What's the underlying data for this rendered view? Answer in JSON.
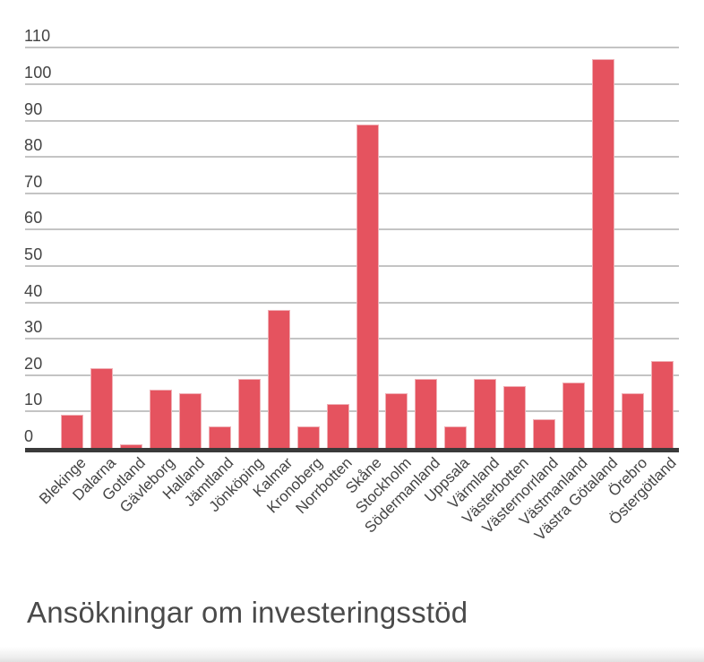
{
  "chart_data": {
    "type": "bar",
    "title": "Ansökningar om investeringsstöd",
    "categories": [
      "Blekinge",
      "Dalarna",
      "Gotland",
      "Gävleborg",
      "Halland",
      "Jämtland",
      "Jönköping",
      "Kalmar",
      "Kronoberg",
      "Norrbotten",
      "Skåne",
      "Stockholm",
      "Södermanland",
      "Uppsala",
      "Värmland",
      "Västerbotten",
      "Västernorrland",
      "Västmanland",
      "Västra Götaland",
      "Örebro",
      "Östergötland"
    ],
    "values": [
      9,
      22,
      1,
      16,
      15,
      6,
      19,
      38,
      6,
      12,
      89,
      15,
      19,
      6,
      19,
      17,
      8,
      18,
      107,
      15,
      24
    ],
    "xlabel": "",
    "ylabel": "",
    "ylim": [
      0,
      110
    ],
    "yticks": [
      0,
      10,
      20,
      30,
      40,
      50,
      60,
      70,
      80,
      90,
      100,
      110
    ],
    "grid": "horizontal",
    "legend": "none",
    "x_tick_rotation_deg": -45,
    "title_position": "bottom-left",
    "colors": {
      "bar_fill": "#e5535f",
      "bar_edge": "#f0afb5",
      "gridline": "#c4c4c4",
      "axis_line": "#3a3a3a",
      "tick_label": "#444444",
      "title": "#4a4a4a",
      "background": "#ffffff"
    }
  }
}
